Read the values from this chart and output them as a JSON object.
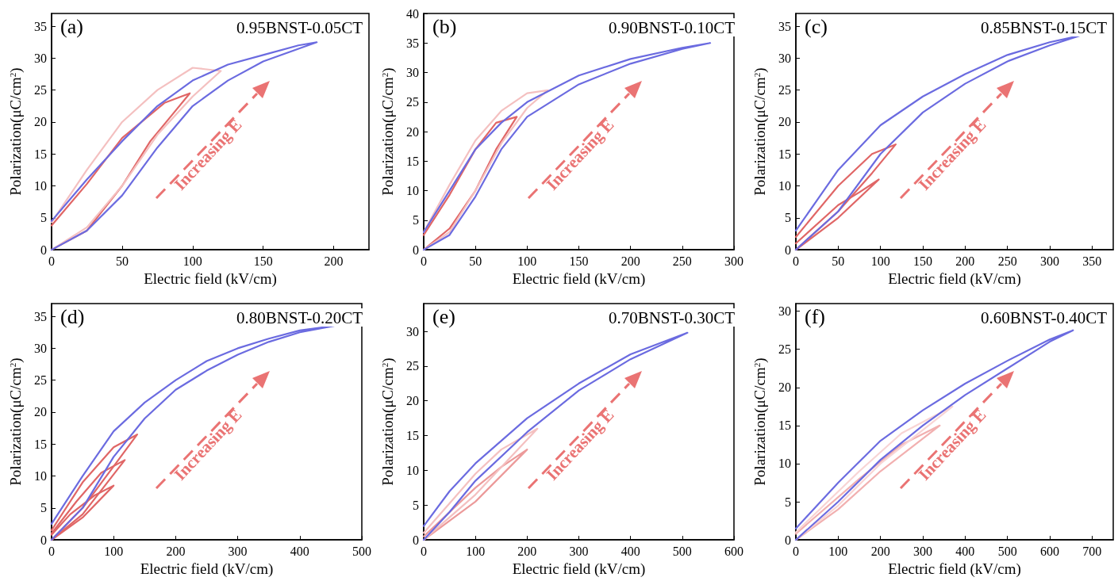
{
  "chart_data": [
    {
      "type": "line",
      "xlabel": "Electric field (kV/cm)",
      "ylabel": "Polarization(μC/cm$^{2}$)",
      "xlim": [
        0,
        225
      ],
      "xticks": [
        0,
        50,
        100,
        150,
        200
      ],
      "ylim": [
        0,
        37
      ],
      "yticks": [
        0,
        5,
        10,
        15,
        20,
        25,
        30,
        35
      ],
      "grid": false,
      "marker": "none",
      "line_style": "solid",
      "annotations": [
        "(a)",
        "0.95BNST-0.05CT",
        "Increasing E"
      ],
      "series": [
        {
          "color": "#e06666",
          "x": [
            0,
            25,
            50,
            70,
            85,
            98,
            80,
            50,
            25,
            0
          ],
          "values": [
            0,
            3,
            10,
            17,
            21,
            24.5,
            23,
            17.5,
            10.3,
            3.8
          ]
        },
        {
          "color": "#f4c0c0",
          "x": [
            0,
            25,
            50,
            75,
            100,
            120,
            100,
            75,
            50,
            25,
            0
          ],
          "values": [
            0,
            3.5,
            10,
            18,
            24,
            28,
            28.5,
            25,
            20,
            12.5,
            4.3
          ]
        },
        {
          "color": "#6b6be0",
          "x": [
            0,
            25,
            50,
            75,
            100,
            125,
            150,
            188,
            175,
            150,
            125,
            100,
            75,
            50,
            25,
            0
          ],
          "values": [
            0,
            3,
            8.5,
            16,
            22.5,
            26.5,
            29.5,
            32.5,
            32,
            30.5,
            29,
            26.5,
            22.5,
            17,
            11,
            4.5
          ]
        }
      ]
    },
    {
      "type": "line",
      "xlabel": "Electric field (kV/cm)",
      "ylabel": "Polarization(μC/cm$^{2}$)",
      "xlim": [
        0,
        300
      ],
      "xticks": [
        0,
        50,
        100,
        150,
        200,
        250,
        300
      ],
      "ylim": [
        0,
        40
      ],
      "yticks": [
        0,
        5,
        10,
        15,
        20,
        25,
        30,
        35,
        40
      ],
      "grid": false,
      "marker": "none",
      "line_style": "solid",
      "annotations": [
        "(b)",
        "0.90BNST-0.10CT",
        "Increasing E"
      ],
      "series": [
        {
          "color": "#e06666",
          "x": [
            0,
            25,
            50,
            70,
            90,
            70,
            50,
            25,
            0
          ],
          "values": [
            0,
            3.6,
            10,
            17,
            22.5,
            21.5,
            17,
            9.3,
            2.5
          ]
        },
        {
          "color": "#f4c0c0",
          "x": [
            0,
            25,
            50,
            75,
            100,
            120,
            100,
            75,
            50,
            25,
            0
          ],
          "values": [
            0,
            3,
            10,
            18,
            24,
            27,
            26.5,
            23.5,
            18.5,
            11,
            3
          ]
        },
        {
          "color": "#6b6be0",
          "x": [
            0,
            25,
            50,
            75,
            100,
            150,
            200,
            250,
            277,
            250,
            200,
            150,
            100,
            75,
            50,
            25,
            0
          ],
          "values": [
            0,
            2.5,
            9,
            17,
            22.5,
            28,
            31.5,
            34,
            35,
            34.2,
            32.3,
            29.5,
            25,
            21.5,
            17,
            10,
            3
          ]
        }
      ]
    },
    {
      "type": "line",
      "xlabel": "Electric field (kV/cm)",
      "ylabel": "Polarization(μC/cm$^{2}$)",
      "xlim": [
        0,
        375
      ],
      "xticks": [
        0,
        50,
        100,
        150,
        200,
        250,
        300,
        350
      ],
      "ylim": [
        0,
        37
      ],
      "yticks": [
        0,
        5,
        10,
        15,
        20,
        25,
        30,
        35
      ],
      "grid": false,
      "marker": "none",
      "line_style": "solid",
      "annotations": [
        "(c)",
        "0.85BNST-0.15CT",
        "Increasing E"
      ],
      "series": [
        {
          "color": "#e06666",
          "x": [
            0,
            50,
            98,
            75,
            50,
            0
          ],
          "values": [
            0,
            5,
            11,
            9,
            7,
            1
          ]
        },
        {
          "color": "#e06666",
          "x": [
            0,
            50,
            90,
            118,
            90,
            50,
            0
          ],
          "values": [
            0,
            6,
            12,
            16.5,
            15,
            10,
            2
          ]
        },
        {
          "color": "#6b6be0",
          "x": [
            0,
            50,
            100,
            150,
            200,
            250,
            300,
            335,
            300,
            250,
            200,
            150,
            100,
            50,
            0
          ],
          "values": [
            0,
            6,
            15,
            21.5,
            26,
            29.5,
            32,
            33.5,
            32.5,
            30.5,
            27.5,
            24,
            19.5,
            12.5,
            3
          ]
        }
      ]
    },
    {
      "type": "line",
      "xlabel": "Electric field (kV/cm)",
      "ylabel": "Polarization(μC/cm$^{2}$)",
      "xlim": [
        0,
        500
      ],
      "xticks": [
        0,
        100,
        200,
        300,
        400,
        500
      ],
      "ylim": [
        0,
        37
      ],
      "yticks": [
        0,
        5,
        10,
        15,
        20,
        25,
        30,
        35
      ],
      "grid": false,
      "marker": "none",
      "line_style": "solid",
      "annotations": [
        "(d)",
        "0.80BNST-0.20CT",
        "Increasing E"
      ],
      "series": [
        {
          "color": "#e06666",
          "x": [
            0,
            50,
            100,
            70,
            30,
            0
          ],
          "values": [
            0,
            3.5,
            8.5,
            7,
            4,
            0.8
          ]
        },
        {
          "color": "#e06666",
          "x": [
            0,
            50,
            118,
            80,
            40,
            0
          ],
          "values": [
            0,
            4,
            12.5,
            10.5,
            6,
            1
          ]
        },
        {
          "color": "#e06666",
          "x": [
            0,
            50,
            100,
            138,
            100,
            50,
            0
          ],
          "values": [
            0,
            5,
            11.5,
            16.5,
            14.5,
            9,
            1.5
          ]
        },
        {
          "color": "#6b6be0",
          "x": [
            0,
            50,
            100,
            150,
            200,
            250,
            300,
            350,
            400,
            455,
            400,
            350,
            300,
            250,
            200,
            150,
            100,
            50,
            0
          ],
          "values": [
            0,
            5,
            13,
            19,
            23.5,
            26.5,
            29,
            31,
            32.5,
            33.5,
            32.8,
            31.5,
            30,
            28,
            25,
            21.5,
            17,
            10,
            2.5
          ]
        }
      ]
    },
    {
      "type": "line",
      "xlabel": "Electric field (kV/cm)",
      "ylabel": "Polarization(μC/cm$^{2}$)",
      "xlim": [
        0,
        600
      ],
      "xticks": [
        0,
        100,
        200,
        300,
        400,
        500,
        600
      ],
      "ylim": [
        0,
        34
      ],
      "yticks": [
        0,
        5,
        10,
        15,
        20,
        25,
        30
      ],
      "grid": false,
      "marker": "none",
      "line_style": "solid",
      "annotations": [
        "(e)",
        "0.70BNST-0.30CT",
        "Increasing E"
      ],
      "series": [
        {
          "color": "#ec9a9a",
          "x": [
            0,
            100,
            200,
            150,
            100,
            0
          ],
          "values": [
            0,
            5.5,
            13,
            10.5,
            7.5,
            0.5
          ]
        },
        {
          "color": "#f4c0c0",
          "x": [
            0,
            100,
            220,
            150,
            100,
            0
          ],
          "values": [
            0,
            6.5,
            16,
            13,
            9.5,
            1
          ]
        },
        {
          "color": "#6b6be0",
          "x": [
            0,
            50,
            100,
            200,
            300,
            400,
            510,
            400,
            300,
            200,
            100,
            50,
            0
          ],
          "values": [
            0,
            4,
            8.5,
            15.5,
            21.5,
            26,
            29.8,
            26.7,
            22.5,
            17.5,
            11,
            7,
            2
          ]
        }
      ]
    },
    {
      "type": "line",
      "xlabel": "Electric field (kV/cm)",
      "ylabel": "Polarization(μC/cm$^{2}$)",
      "xlim": [
        0,
        750
      ],
      "xticks": [
        0,
        100,
        200,
        300,
        400,
        500,
        600,
        700
      ],
      "ylim": [
        0,
        31
      ],
      "yticks": [
        0,
        5,
        10,
        15,
        20,
        25,
        30
      ],
      "grid": false,
      "marker": "none",
      "line_style": "solid",
      "annotations": [
        "(f)",
        "0.60BNST-0.40CT",
        "Increasing E"
      ],
      "series": [
        {
          "color": "#f2b0b0",
          "x": [
            0,
            100,
            200,
            340,
            250,
            150,
            0
          ],
          "values": [
            0,
            4,
            9,
            15,
            12.5,
            8,
            0.8
          ]
        },
        {
          "color": "#f8d4d4",
          "x": [
            0,
            100,
            200,
            370,
            250,
            150,
            0
          ],
          "values": [
            0,
            4.5,
            10,
            17.5,
            14,
            9,
            1
          ]
        },
        {
          "color": "#6b6be0",
          "x": [
            0,
            100,
            200,
            300,
            400,
            500,
            600,
            655,
            600,
            500,
            400,
            300,
            200,
            100,
            0
          ],
          "values": [
            0,
            5,
            10.5,
            15,
            19,
            22.5,
            26,
            27.5,
            26.3,
            23.5,
            20.5,
            17,
            13,
            7.5,
            1.5
          ]
        }
      ]
    }
  ]
}
